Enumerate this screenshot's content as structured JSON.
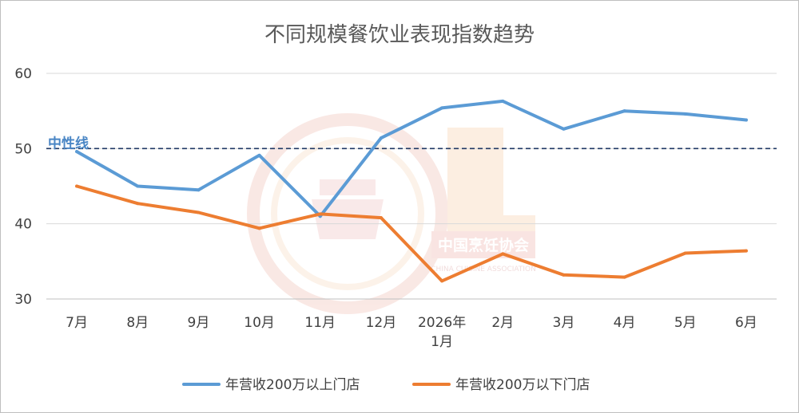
{
  "chart_data": {
    "type": "line",
    "title": "不同规模餐饮业表现指数趋势",
    "xlabel": "",
    "ylabel": "",
    "ylim": [
      30,
      60
    ],
    "yticks": [
      30,
      40,
      50,
      60
    ],
    "grid": true,
    "legend_position": "bottom",
    "categories": [
      [
        "7月"
      ],
      [
        "8月"
      ],
      [
        "9月"
      ],
      [
        "10月"
      ],
      [
        "11月"
      ],
      [
        "12月"
      ],
      [
        "2026年",
        "1月"
      ],
      [
        "2月"
      ],
      [
        "3月"
      ],
      [
        "4月"
      ],
      [
        "5月"
      ],
      [
        "6月"
      ]
    ],
    "series": [
      {
        "name": "年营收200万以上门店",
        "color": "#5b9bd5",
        "values": [
          49.6,
          45.0,
          44.5,
          49.1,
          41.0,
          51.4,
          55.4,
          56.3,
          52.6,
          55.0,
          54.6,
          53.8
        ]
      },
      {
        "name": "年营收200万以下门店",
        "color": "#ed7d31",
        "values": [
          45.0,
          42.7,
          41.5,
          39.4,
          41.3,
          40.8,
          32.4,
          36.0,
          33.2,
          32.9,
          36.1,
          36.4
        ]
      }
    ],
    "reference_line": {
      "label": "中性线",
      "value": 50,
      "color": "#203864"
    }
  },
  "watermark": {
    "text": "中国烹饪协会",
    "subtext": "CHINA CUISINE ASSOCIATION"
  }
}
